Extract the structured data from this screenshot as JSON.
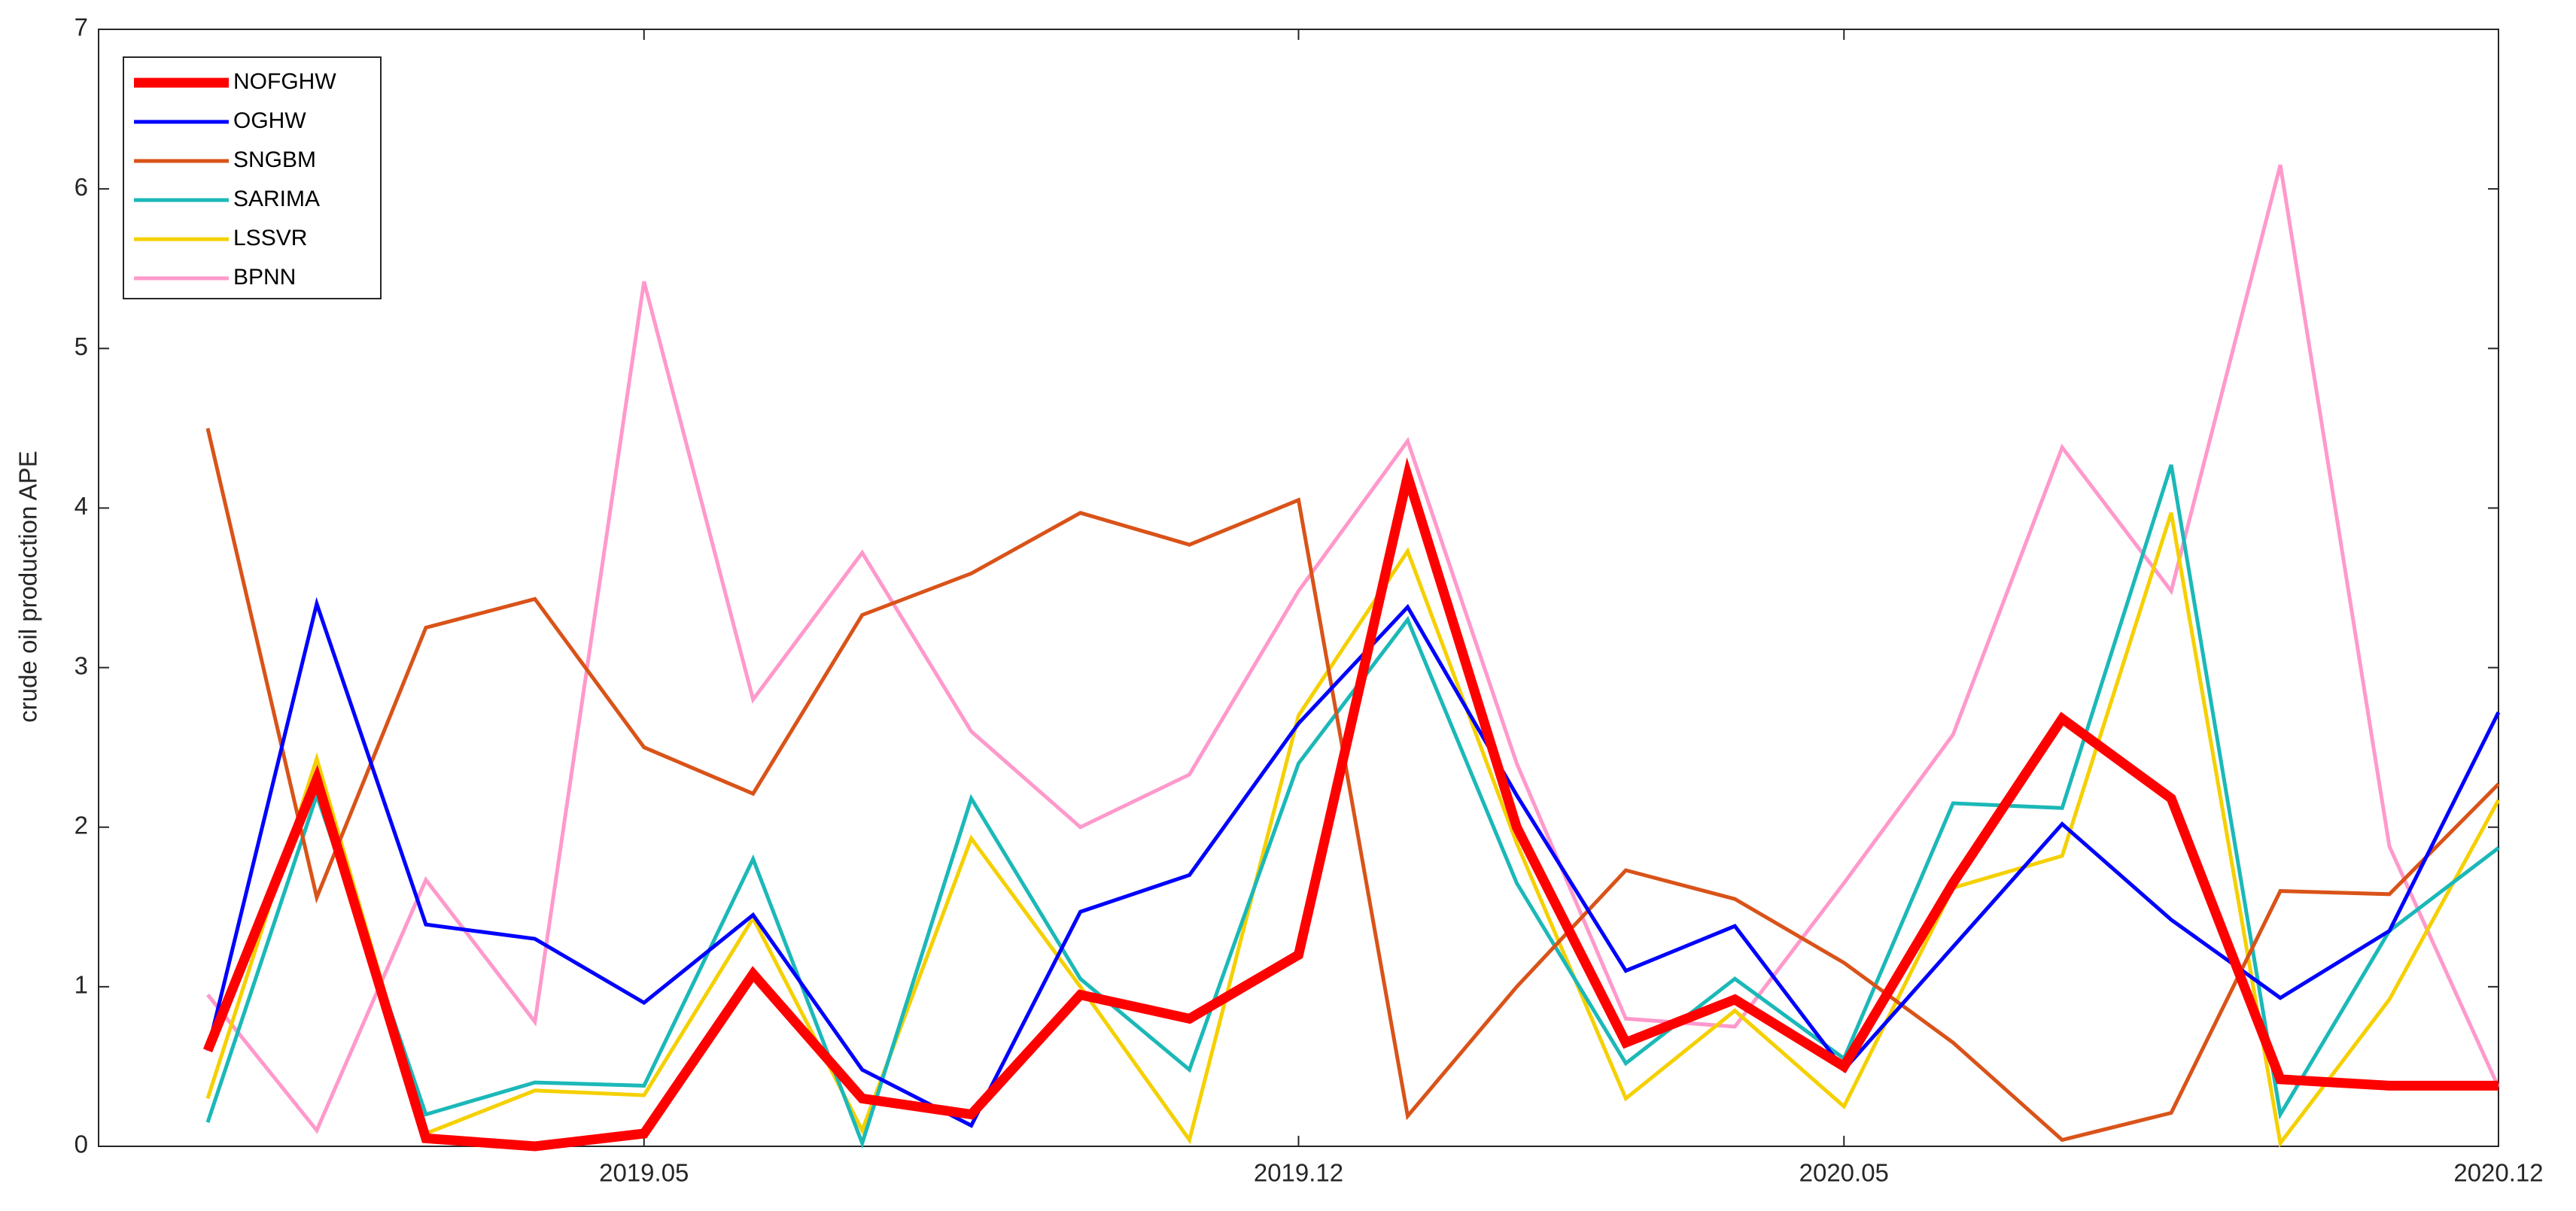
{
  "chart_data": {
    "type": "line",
    "ylabel": "crude oil production APE",
    "categories": [
      null,
      null,
      null,
      null,
      "2019.05",
      null,
      null,
      null,
      null,
      null,
      "2019.12",
      null,
      null,
      null,
      null,
      "2020.05",
      null,
      null,
      null,
      null,
      null,
      "2020.12"
    ],
    "ylim": [
      0,
      7
    ],
    "yticks": [
      0,
      1,
      2,
      3,
      4,
      5,
      6,
      7
    ],
    "legend": "upper left",
    "series": [
      {
        "name": "NOFGHW",
        "color": "#ff0000",
        "values": [
          0.6,
          2.3,
          0.05,
          0.0,
          0.08,
          1.08,
          0.3,
          0.2,
          0.95,
          0.8,
          1.2,
          4.2,
          2.0,
          0.65,
          0.92,
          0.5,
          1.65,
          2.68,
          2.18,
          0.42,
          0.38,
          0.38
        ]
      },
      {
        "name": "OGHW",
        "color": "#0000ff",
        "values": [
          0.6,
          3.4,
          1.39,
          1.3,
          0.9,
          1.45,
          0.48,
          0.13,
          1.47,
          1.7,
          2.65,
          3.38,
          2.2,
          1.1,
          1.38,
          0.48,
          1.25,
          2.02,
          1.42,
          0.93,
          1.35,
          2.72
        ]
      },
      {
        "name": "SNGBM",
        "color": "#d95319",
        "values": [
          4.5,
          1.56,
          3.25,
          3.43,
          2.5,
          2.21,
          3.33,
          3.59,
          3.97,
          3.77,
          4.05,
          0.19,
          1.0,
          1.73,
          1.55,
          1.15,
          0.65,
          0.04,
          0.21,
          1.6,
          1.58,
          2.27
        ]
      },
      {
        "name": "SARIMA",
        "color": "#1cb8b8",
        "values": [
          0.15,
          2.2,
          0.2,
          0.4,
          0.38,
          1.8,
          0.02,
          2.18,
          1.05,
          0.48,
          2.4,
          3.3,
          1.65,
          0.52,
          1.05,
          0.55,
          2.15,
          2.12,
          4.27,
          0.2,
          1.35,
          1.87
        ]
      },
      {
        "name": "LSSVR",
        "color": "#f5d000",
        "values": [
          0.3,
          2.43,
          0.08,
          0.35,
          0.32,
          1.43,
          0.1,
          1.93,
          1.0,
          0.04,
          2.7,
          3.73,
          1.9,
          0.3,
          0.85,
          0.25,
          1.62,
          1.82,
          3.97,
          0.02,
          0.92,
          2.17
        ]
      },
      {
        "name": "BPNN",
        "color": "#ff99cc",
        "values": [
          0.95,
          0.1,
          1.67,
          0.78,
          5.42,
          2.8,
          3.72,
          2.6,
          2.0,
          2.33,
          3.48,
          4.42,
          2.4,
          0.8,
          0.75,
          1.65,
          2.58,
          4.38,
          3.48,
          6.15,
          1.88,
          0.37
        ]
      }
    ]
  }
}
